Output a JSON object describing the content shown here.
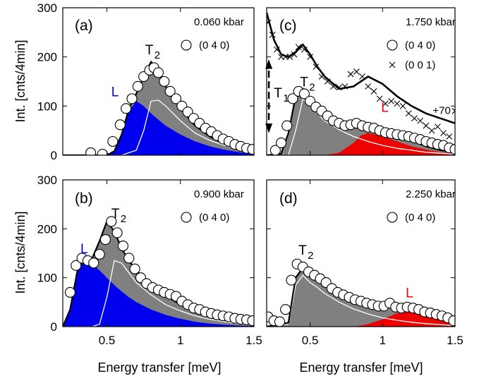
{
  "figure": {
    "shared_y_label": "Int. [cnts/4min]",
    "shared_x_label": "Energy transfer [meV]",
    "x_ticks": [
      "0.5",
      "1",
      "1.5"
    ],
    "y_ticks": [
      "0",
      "100",
      "200",
      "300"
    ]
  },
  "colors": {
    "gray_fill": "#808080",
    "blue_fill": "#0000ee",
    "red_fill": "#ee0000",
    "blue_text": "#0000ff",
    "red_text": "#ff0000"
  },
  "chart_data": [
    {
      "type": "area",
      "panel": "(a)",
      "pressure": "0.060 kbar",
      "legend": [
        {
          "symbol": "open-circle",
          "label": "(0 4 0)"
        }
      ],
      "peak_labels": {
        "L": "L",
        "T2": "T",
        "T2_sub": "2"
      },
      "xlabel": "",
      "ylabel": "Int. [cnts/4min]",
      "xlim": [
        0.2,
        1.5
      ],
      "ylim": [
        0,
        300
      ],
      "series": [
        {
          "name": "(0 4 0)",
          "kind": "data",
          "x": [
            0.39,
            0.47,
            0.54,
            0.59,
            0.63,
            0.67,
            0.71,
            0.75,
            0.79,
            0.82,
            0.85,
            0.89,
            0.93,
            0.97,
            1.01,
            1.05,
            1.09,
            1.13,
            1.17,
            1.21,
            1.25,
            1.29,
            1.33,
            1.37,
            1.41,
            1.45,
            1.49
          ],
          "y": [
            5,
            2,
            28,
            62,
            95,
            115,
            140,
            160,
            173,
            178,
            168,
            150,
            130,
            115,
            100,
            88,
            75,
            65,
            55,
            48,
            40,
            33,
            28,
            22,
            18,
            14,
            12
          ]
        },
        {
          "name": "",
          "kind": "total",
          "x": [
            0.2,
            0.5,
            0.55,
            0.6,
            0.65,
            0.7,
            0.75,
            0.8,
            0.85,
            0.9,
            1.0,
            1.1,
            1.2,
            1.3,
            1.4,
            1.5
          ],
          "y": [
            0,
            0,
            8,
            42,
            95,
            125,
            160,
            190,
            175,
            140,
            95,
            60,
            38,
            23,
            14,
            8
          ]
        },
        {
          "name": "L",
          "kind": "blue",
          "x": [
            0.2,
            0.5,
            0.55,
            0.6,
            0.65,
            0.7,
            0.75,
            0.8,
            0.85,
            0.9,
            1.0,
            1.1,
            1.2,
            1.3,
            1.4,
            1.5
          ],
          "y": [
            0,
            0,
            8,
            40,
            90,
            110,
            100,
            85,
            72,
            60,
            42,
            28,
            18,
            11,
            6,
            3
          ]
        },
        {
          "name": "T2",
          "kind": "white",
          "x": [
            0.2,
            0.5,
            0.6,
            0.7,
            0.75,
            0.8,
            0.85,
            0.9,
            1.0,
            1.1,
            1.2,
            1.3,
            1.4,
            1.5
          ],
          "y": [
            0,
            0,
            0,
            10,
            50,
            110,
            112,
            100,
            70,
            45,
            30,
            20,
            12,
            7
          ]
        }
      ]
    },
    {
      "type": "area",
      "panel": "(b)",
      "pressure": "0.900 kbar",
      "legend": [
        {
          "symbol": "open-circle",
          "label": "(0 4 0)"
        }
      ],
      "peak_labels": {
        "L": "L",
        "T2": "T",
        "T2_sub": "2"
      },
      "xlabel": "Energy transfer [meV]",
      "ylabel": "Int. [cnts/4min]",
      "xlim": [
        0.2,
        1.5
      ],
      "ylim": [
        0,
        300
      ],
      "series": [
        {
          "name": "(0 4 0)",
          "kind": "data",
          "x": [
            0.25,
            0.29,
            0.33,
            0.37,
            0.41,
            0.45,
            0.49,
            0.53,
            0.57,
            0.61,
            0.65,
            0.69,
            0.73,
            0.77,
            0.81,
            0.85,
            0.89,
            0.93,
            0.97,
            1.01,
            1.05,
            1.09,
            1.13,
            1.17,
            1.21,
            1.25,
            1.29,
            1.33,
            1.37,
            1.41,
            1.45,
            1.49
          ],
          "y": [
            70,
            125,
            140,
            135,
            130,
            148,
            178,
            215,
            192,
            165,
            140,
            118,
            100,
            88,
            80,
            75,
            70,
            66,
            62,
            52,
            45,
            38,
            35,
            30,
            27,
            24,
            22,
            20,
            17,
            15,
            14,
            12
          ]
        },
        {
          "name": "",
          "kind": "total",
          "x": [
            0.2,
            0.25,
            0.3,
            0.35,
            0.4,
            0.45,
            0.5,
            0.55,
            0.6,
            0.65,
            0.7,
            0.8,
            0.9,
            1.0,
            1.1,
            1.2,
            1.3,
            1.4,
            1.5
          ],
          "y": [
            0,
            35,
            115,
            140,
            140,
            175,
            215,
            195,
            160,
            135,
            115,
            85,
            63,
            45,
            32,
            22,
            15,
            10,
            6
          ]
        },
        {
          "name": "L",
          "kind": "blue",
          "x": [
            0.2,
            0.25,
            0.3,
            0.35,
            0.4,
            0.45,
            0.5,
            0.55,
            0.6,
            0.65,
            0.7,
            0.8,
            0.9,
            1.0,
            1.1,
            1.2,
            1.3,
            1.4,
            1.5
          ],
          "y": [
            0,
            35,
            115,
            138,
            128,
            115,
            100,
            85,
            72,
            60,
            50,
            35,
            24,
            16,
            10,
            6,
            4,
            2,
            1
          ]
        },
        {
          "name": "T2",
          "kind": "white",
          "x": [
            0.2,
            0.4,
            0.45,
            0.5,
            0.55,
            0.6,
            0.65,
            0.7,
            0.8,
            0.9,
            1.0,
            1.1,
            1.2,
            1.3,
            1.4,
            1.5
          ],
          "y": [
            0,
            0,
            5,
            60,
            135,
            130,
            110,
            90,
            65,
            45,
            32,
            22,
            15,
            10,
            6,
            4
          ]
        }
      ]
    },
    {
      "type": "area",
      "panel": "(c)",
      "pressure": "1.750 kbar",
      "legend": [
        {
          "symbol": "open-circle",
          "label": "(0 4 0)"
        },
        {
          "symbol": "cross",
          "label": "(0 0 1)"
        }
      ],
      "peak_labels": {
        "L": "L",
        "T2": "T",
        "T2_sub": "2",
        "T1": "T",
        "T1_sub": "1"
      },
      "offset_label": "+70",
      "xlabel": "",
      "ylabel": "",
      "xlim": [
        0.2,
        1.5
      ],
      "ylim": [
        0,
        300
      ],
      "series": [
        {
          "name": "(0 4 0)",
          "kind": "data",
          "x": [
            0.26,
            0.3,
            0.34,
            0.38,
            0.42,
            0.46,
            0.5,
            0.54,
            0.58,
            0.62,
            0.66,
            0.7,
            0.74,
            0.78,
            0.82,
            0.86,
            0.9,
            0.94,
            0.98,
            1.02,
            1.06,
            1.1,
            1.14,
            1.18,
            1.22,
            1.26,
            1.3,
            1.34,
            1.38,
            1.42,
            1.46,
            1.5
          ],
          "y": [
            10,
            25,
            60,
            115,
            130,
            125,
            110,
            98,
            90,
            80,
            70,
            65,
            60,
            62,
            65,
            60,
            57,
            55,
            50,
            46,
            44,
            42,
            40,
            38,
            35,
            32,
            28,
            25,
            22,
            20,
            15,
            12
          ]
        },
        {
          "name": "(0 0 1)",
          "kind": "cross",
          "x": [
            0.21,
            0.24,
            0.27,
            0.3,
            0.33,
            0.36,
            0.39,
            0.42,
            0.46,
            0.5,
            0.54,
            0.58,
            0.62,
            0.66,
            0.7,
            0.74,
            0.78,
            0.82,
            0.86,
            0.9,
            0.94,
            0.98,
            1.02,
            1.06,
            1.1,
            1.14,
            1.18,
            1.22,
            1.26,
            1.3,
            1.34,
            1.38,
            1.42,
            1.46,
            1.5
          ],
          "y": [
            270,
            245,
            215,
            200,
            200,
            200,
            205,
            220,
            215,
            200,
            180,
            160,
            150,
            140,
            138,
            140,
            165,
            170,
            160,
            140,
            130,
            115,
            105,
            110,
            105,
            100,
            85,
            75,
            70,
            60,
            50,
            58,
            45,
            38,
            90
          ]
        },
        {
          "name": "",
          "kind": "total",
          "x": [
            0.2,
            0.3,
            0.35,
            0.4,
            0.45,
            0.5,
            0.55,
            0.6,
            0.7,
            0.8,
            0.9,
            1.0,
            1.1,
            1.2,
            1.3,
            1.4,
            1.5
          ],
          "y": [
            0,
            3,
            45,
            120,
            135,
            110,
            95,
            82,
            66,
            58,
            62,
            52,
            42,
            30,
            18,
            10,
            6
          ]
        },
        {
          "name": "L",
          "kind": "red",
          "x": [
            0.2,
            0.6,
            0.7,
            0.8,
            0.85,
            0.9,
            0.95,
            1.0,
            1.1,
            1.2,
            1.3,
            1.4,
            1.5
          ],
          "y": [
            0,
            0,
            5,
            25,
            40,
            45,
            42,
            38,
            28,
            18,
            11,
            6,
            3
          ]
        },
        {
          "name": "T2",
          "kind": "white",
          "x": [
            0.2,
            0.35,
            0.4,
            0.45,
            0.5,
            0.55,
            0.6,
            0.7,
            0.8,
            0.9,
            1.0,
            1.1,
            1.2,
            1.3,
            1.4,
            1.5
          ],
          "y": [
            0,
            0,
            50,
            115,
            100,
            85,
            70,
            52,
            38,
            28,
            20,
            14,
            10,
            6,
            4,
            2
          ]
        },
        {
          "name": "",
          "kind": "fit",
          "x": [
            0.2,
            0.25,
            0.3,
            0.35,
            0.4,
            0.45,
            0.5,
            0.55,
            0.6,
            0.7,
            0.8,
            0.9,
            1.0,
            1.1,
            1.2,
            1.3,
            1.4,
            1.5
          ],
          "y": [
            290,
            235,
            205,
            200,
            210,
            225,
            205,
            180,
            160,
            135,
            140,
            160,
            145,
            120,
            100,
            85,
            75,
            65
          ]
        }
      ]
    },
    {
      "type": "area",
      "panel": "(d)",
      "pressure": "2.250 kbar",
      "legend": [
        {
          "symbol": "open-circle",
          "label": "(0 4 0)"
        }
      ],
      "peak_labels": {
        "L": "L",
        "T2": "T",
        "T2_sub": "2"
      },
      "xlabel": "Energy transfer [meV]",
      "ylabel": "",
      "xlim": [
        0.2,
        1.5
      ],
      "ylim": [
        0,
        300
      ],
      "series": [
        {
          "name": "(0 4 0)",
          "kind": "data",
          "x": [
            0.21,
            0.25,
            0.29,
            0.33,
            0.37,
            0.41,
            0.45,
            0.49,
            0.53,
            0.57,
            0.61,
            0.65,
            0.69,
            0.73,
            0.77,
            0.81,
            0.85,
            0.89,
            0.93,
            0.97,
            1.01,
            1.05,
            1.09,
            1.13,
            1.17,
            1.21,
            1.25,
            1.29,
            1.33,
            1.37,
            1.41,
            1.45,
            1.49
          ],
          "y": [
            20,
            12,
            10,
            35,
            95,
            128,
            122,
            112,
            105,
            98,
            90,
            78,
            70,
            65,
            60,
            55,
            52,
            48,
            45,
            42,
            42,
            48,
            40,
            38,
            40,
            38,
            35,
            30,
            28,
            25,
            22,
            18,
            12
          ]
        },
        {
          "name": "",
          "kind": "total",
          "x": [
            0.2,
            0.35,
            0.4,
            0.45,
            0.5,
            0.55,
            0.6,
            0.7,
            0.8,
            0.9,
            1.0,
            1.1,
            1.2,
            1.3,
            1.4,
            1.5
          ],
          "y": [
            0,
            8,
            100,
            120,
            105,
            95,
            85,
            70,
            57,
            48,
            42,
            40,
            36,
            28,
            18,
            10
          ]
        },
        {
          "name": "L",
          "kind": "red",
          "x": [
            0.2,
            0.8,
            0.9,
            1.0,
            1.1,
            1.15,
            1.2,
            1.25,
            1.3,
            1.4,
            1.5
          ],
          "y": [
            0,
            0,
            5,
            15,
            27,
            32,
            34,
            32,
            28,
            18,
            10
          ]
        },
        {
          "name": "T2",
          "kind": "white",
          "x": [
            0.2,
            0.35,
            0.4,
            0.45,
            0.5,
            0.55,
            0.6,
            0.7,
            0.8,
            0.9,
            1.0,
            1.1,
            1.2,
            1.3,
            1.4,
            1.5
          ],
          "y": [
            0,
            5,
            85,
            105,
            90,
            80,
            68,
            50,
            36,
            26,
            18,
            13,
            9,
            6,
            4,
            2
          ]
        }
      ]
    }
  ]
}
